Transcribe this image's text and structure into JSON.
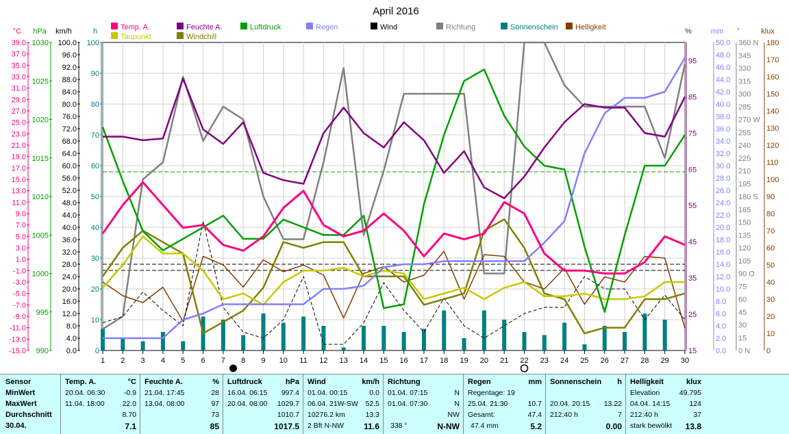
{
  "chart_data": {
    "type": "line",
    "title": "April 2016",
    "x": [
      1,
      2,
      3,
      4,
      5,
      6,
      7,
      8,
      9,
      10,
      11,
      12,
      13,
      14,
      15,
      16,
      17,
      18,
      19,
      20,
      21,
      22,
      23,
      24,
      25,
      26,
      27,
      28,
      29,
      30
    ],
    "legend": [
      {
        "name": "Temp. A.",
        "color": "#ff0080"
      },
      {
        "name": "Feuchte A.",
        "color": "#800080"
      },
      {
        "name": "Luftdruck",
        "color": "#00a000"
      },
      {
        "name": "Regen",
        "color": "#8080ff"
      },
      {
        "name": "Wind",
        "color": "#000000"
      },
      {
        "name": "Richtung",
        "color": "#808080"
      },
      {
        "name": "Sonnenschein",
        "color": "#008080"
      },
      {
        "name": "Helligkeit",
        "color": "#804000"
      },
      {
        "name": "Taupunkt",
        "color": "#c8c800"
      },
      {
        "name": "Windchill",
        "color": "#808000"
      }
    ],
    "axes": {
      "temp": {
        "label": "°C",
        "color": "#ff0080",
        "ticks": [
          "39.0",
          "37.0",
          "35.0",
          "33.0",
          "31.0",
          "29.0",
          "27.0",
          "25.0",
          "23.0",
          "21.0",
          "19.0",
          "17.0",
          "15.0",
          "13.0",
          "11.0",
          "9.0",
          "7.0",
          "5.0",
          "3.0",
          "1.0",
          "-1.0",
          "-3.0",
          "-5.0",
          "-7.0",
          "-9.0",
          "-11.0",
          "-13.0",
          "-15.0"
        ]
      },
      "pressure": {
        "label": "hPa",
        "color": "#00a000",
        "ticks": [
          "1030",
          "1025",
          "1020",
          "1015",
          "1010",
          "1005",
          "1000",
          "995",
          "990"
        ]
      },
      "wind": {
        "label": "km/h",
        "color": "#000000",
        "ticks": [
          "100.0",
          "96.0",
          "92.0",
          "88.0",
          "84.0",
          "80.0",
          "76.0",
          "72.0",
          "68.0",
          "64.0",
          "60.0",
          "56.0",
          "52.0",
          "48.0",
          "44.0",
          "40.0",
          "36.0",
          "32.0",
          "28.0",
          "24.0",
          "20.0",
          "16.0",
          "12.0",
          "8.0",
          "4.0",
          "0.0"
        ]
      },
      "sun": {
        "label": "h",
        "color": "#008080",
        "ticks": [
          "100",
          "90",
          "80",
          "70",
          "60",
          "50",
          "40",
          "30",
          "20",
          "10",
          "0"
        ]
      },
      "humidity": {
        "label": "%",
        "color": "#800080",
        "ticks": [
          "95",
          "85",
          "75",
          "65",
          "55",
          "45",
          "35",
          "25",
          "15"
        ]
      },
      "rain": {
        "label": "mm",
        "color": "#8080ff",
        "ticks": [
          "50.0",
          "48.0",
          "46.0",
          "44.0",
          "42.0",
          "40.0",
          "38.0",
          "36.0",
          "34.0",
          "32.0",
          "30.0",
          "28.0",
          "26.0",
          "24.0",
          "22.0",
          "20.0",
          "18.0",
          "16.0",
          "14.0",
          "12.0",
          "10.0",
          "8.0",
          "6.0",
          "4.0",
          "2.0",
          "0.0"
        ]
      },
      "direction": {
        "label": "°",
        "color": "#808080",
        "ticks": [
          "360 N",
          "345",
          "330",
          "315",
          "300",
          "285",
          "270 W",
          "255",
          "240",
          "225",
          "210",
          "195",
          "180 S",
          "165",
          "150",
          "135",
          "120",
          "105",
          "90 O",
          "75",
          "60",
          "45",
          "30",
          "15",
          "0 N"
        ]
      },
      "lux": {
        "label": "klux",
        "color": "#804000",
        "ticks": [
          "180",
          "170",
          "160",
          "150",
          "140",
          "130",
          "120",
          "110",
          "100",
          "90",
          "80",
          "70",
          "60",
          "50",
          "40",
          "30",
          "20",
          "10",
          "0"
        ]
      }
    },
    "series": [
      {
        "name": "Temp. A.",
        "axis": "temp",
        "values": [
          5.5,
          10.5,
          14.5,
          10.5,
          6.5,
          7.0,
          3.5,
          2.5,
          5.0,
          10.0,
          13.0,
          7.0,
          5.0,
          6.0,
          9.0,
          6.0,
          1.5,
          5.5,
          4.5,
          5.5,
          11.0,
          9.0,
          2.0,
          -1.0,
          -1.0,
          -1.5,
          -1.5,
          0.5,
          5.0,
          3.5
        ]
      },
      {
        "name": "Feuchte A.",
        "axis": "humidity",
        "values": [
          74,
          74,
          73,
          73.5,
          90,
          76,
          72,
          78,
          64,
          62,
          61,
          75,
          82,
          75,
          71,
          78,
          73,
          64,
          70,
          60,
          57,
          63,
          71,
          78,
          83,
          82,
          82,
          75,
          74,
          85
        ]
      },
      {
        "name": "Luftdruck",
        "axis": "pressure",
        "values": [
          1019,
          1012,
          1005.5,
          1003,
          1004.5,
          1006,
          1007.5,
          1004.5,
          1004.5,
          1007,
          1006,
          1005,
          1005,
          1007.5,
          995.5,
          996,
          1009,
          1018,
          1025,
          1026.5,
          1020.5,
          1016.5,
          1014,
          1013.5,
          1003.5,
          995,
          1005,
          1014,
          1014,
          1018
        ]
      },
      {
        "name": "Regen",
        "axis": "rain",
        "values": [
          2.0,
          2.0,
          2.0,
          2.0,
          5.0,
          6.0,
          7.5,
          7.5,
          7.5,
          7.5,
          7.5,
          10.0,
          10.0,
          10.5,
          13.5,
          14.0,
          14.0,
          14.5,
          14.5,
          14.5,
          14.5,
          14.5,
          17.5,
          21.0,
          32.0,
          38.5,
          41.0,
          41.0,
          42.0,
          47.5
        ]
      },
      {
        "name": "Wind",
        "axis": "wind",
        "values": [
          9,
          11,
          19,
          13,
          8,
          42,
          14,
          6,
          4,
          10,
          24,
          2,
          2,
          9,
          22,
          13,
          6,
          17,
          8,
          4,
          8,
          12,
          14,
          14,
          24,
          20,
          20,
          10,
          18,
          10
        ]
      },
      {
        "name": "Richtung",
        "axis": "direction",
        "values": [
          25,
          40,
          200,
          220,
          320,
          245,
          285,
          270,
          180,
          130,
          130,
          220,
          330,
          135,
          210,
          300,
          300,
          300,
          300,
          90,
          90,
          360,
          360,
          310,
          285,
          285,
          285,
          285,
          225,
          335
        ]
      },
      {
        "name": "Sonnenschein",
        "axis": "sun",
        "type": "bar",
        "values": [
          7,
          4,
          3,
          6,
          3,
          11,
          10,
          5,
          12,
          9,
          11,
          8,
          1,
          8,
          8,
          6,
          7,
          13,
          4,
          13,
          10,
          6,
          5,
          9,
          2,
          8,
          6,
          12,
          10,
          null
        ]
      },
      {
        "name": "Helligkeit",
        "axis": "lux",
        "values": [
          40,
          32,
          28,
          37,
          17,
          55,
          50,
          37,
          53,
          46,
          50,
          44,
          19,
          45,
          49,
          40,
          44,
          58,
          30,
          56,
          55,
          40,
          36,
          48,
          27,
          43,
          40,
          55,
          54,
          13
        ]
      },
      {
        "name": "Taupunkt",
        "axis": "temp",
        "values": [
          -4,
          0,
          5,
          2,
          2,
          -1,
          -6,
          -5,
          -7,
          -3,
          -1,
          -1,
          -0.5,
          -2,
          -1,
          -1.5,
          -6,
          -5,
          -4,
          -6,
          -4,
          -3,
          -5.5,
          -5.5,
          -5,
          -6,
          -6,
          -5.5,
          -3,
          -3
        ]
      },
      {
        "name": "Windchill",
        "axis": "temp",
        "values": [
          -2,
          3,
          6,
          4,
          2,
          -12,
          -10,
          -8,
          -4,
          4,
          3,
          4,
          4,
          -2,
          -2,
          -2,
          -7,
          -6,
          -5,
          6,
          8,
          3,
          -5,
          -6,
          -12,
          -11,
          -11,
          -6,
          -6,
          -5
        ]
      }
    ],
    "ref_lines": [
      {
        "axis": "pressure",
        "value": 1013.2,
        "color": "#00a000"
      },
      {
        "axis": "wind",
        "value": 28,
        "color": "#000000"
      },
      {
        "axis": "wind",
        "value": 26,
        "color": "#000000"
      }
    ],
    "moon_marks": [
      {
        "day": 7.5,
        "type": "new"
      },
      {
        "day": 22,
        "type": "full"
      }
    ]
  },
  "summary": {
    "labels": {
      "sensor": "Sensor",
      "min": "MinWert",
      "max": "MaxWert",
      "avg": "Durchschnitt",
      "date": "30.04."
    },
    "temp": {
      "title": "Temp. A.",
      "unit": "°C",
      "min_date": "20.04.  06:30",
      "min_val": "-0.9",
      "max_date": "11.04.  18:00",
      "max_val": "22.0",
      "avg": "8.70",
      "today": "7.1"
    },
    "humidity": {
      "title": "Feuchte A.",
      "unit": "%",
      "min_date": "21.04.  17:45",
      "min_val": "28",
      "max_date": "13.04.  08:00",
      "max_val": "97",
      "avg": "73",
      "today": "85"
    },
    "pressure": {
      "title": "Luftdruck",
      "unit": "hPa",
      "min_date": "16.04.  06:15",
      "min_val": "997.4",
      "max_date": "20.04.  08:00",
      "max_val": "1029.7",
      "avg": "1010.7",
      "today": "1017.5"
    },
    "wind": {
      "title": "Wind",
      "unit": "km/h",
      "min_date": "01.04.  00:15",
      "min_val": "0.0",
      "max_date": "06.04.  21W-SW",
      "max_val": "52.5",
      "avg_label": "10276.2 km",
      "avg": "13.3",
      "today_label": "2 Bft N-NW",
      "today": "11.6"
    },
    "direction": {
      "title": "Richtung",
      "min_date": "01.04.  07:15",
      "min_val": "N",
      "max_date": "01.04.  07:30",
      "max_val": "N",
      "avg": "NW",
      "today_label": "338 °",
      "today": "N-NW"
    },
    "rain": {
      "title": "Regen",
      "unit": "mm",
      "min_label": "Regentage: 19",
      "max_date": "25.04.  21:30",
      "max_val": "10.7",
      "avg_label": "Gesamt:",
      "avg": "47.4",
      "today_label": "47.4 mm",
      "today": "5.2"
    },
    "sun": {
      "title": "Sonnenschein",
      "unit": "h",
      "max_date": "20.04.  20:15",
      "max_val": "13.22",
      "avg_label": "212:40 h",
      "avg": "7",
      "today": "0.00"
    },
    "lux": {
      "title": "Helligkeit",
      "unit": "klux",
      "min_label": "Elevation",
      "min_val": "49.795",
      "max_date": "04.04.  14:15",
      "max_val": "124",
      "avg_label": "212:40 h",
      "avg": "37",
      "today_label": "stark bewölkt",
      "today": "13.8"
    }
  }
}
